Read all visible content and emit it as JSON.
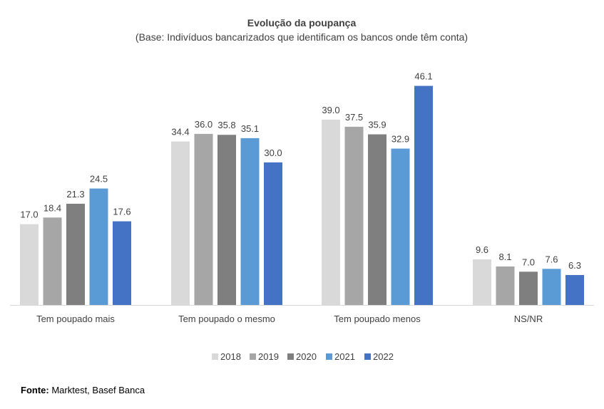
{
  "chart_data": {
    "type": "bar",
    "title": "Evolução da poupança",
    "subtitle": "(Base: Indivíduos bancarizados que identificam os bancos onde têm conta)",
    "categories": [
      "Tem poupado mais",
      "Tem poupado o mesmo",
      "Tem poupado menos",
      "NS/NR"
    ],
    "series": [
      {
        "name": "2018",
        "color": "#d9d9d9",
        "values": [
          17.0,
          34.4,
          39.0,
          9.6
        ]
      },
      {
        "name": "2019",
        "color": "#a6a6a6",
        "values": [
          18.4,
          36.0,
          37.5,
          8.1
        ]
      },
      {
        "name": "2020",
        "color": "#7f7f7f",
        "values": [
          21.3,
          35.8,
          35.9,
          7.0
        ]
      },
      {
        "name": "2021",
        "color": "#5b9bd5",
        "values": [
          24.5,
          35.1,
          32.9,
          7.6
        ]
      },
      {
        "name": "2022",
        "color": "#4472c4",
        "values": [
          17.6,
          30.0,
          46.1,
          6.3
        ]
      }
    ],
    "ylim": [
      0,
      50
    ],
    "grid": false,
    "legend": "bottom",
    "xlabel": "",
    "ylabel": ""
  },
  "footer": {
    "label": "Fonte:",
    "text": "Marktest, Basef Banca"
  }
}
